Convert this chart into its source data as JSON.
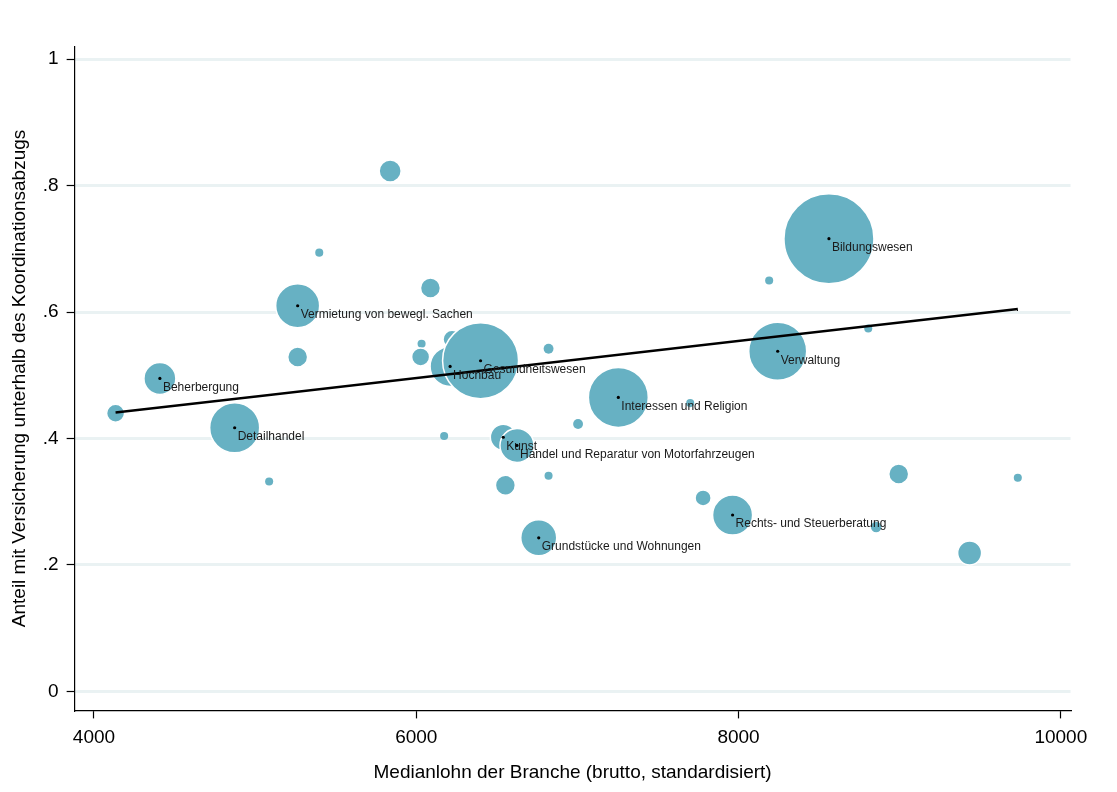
{
  "chart_data": {
    "type": "bubble",
    "xlabel": "Medianlohn der Branche (brutto, standardisiert)",
    "ylabel": "Anteil mit Versicherung unterhalb des Koordinationsabzugs",
    "xlim": [
      3880,
      10060
    ],
    "xticks": [
      4000,
      6000,
      8000,
      10000
    ],
    "ylim": [
      -0.03,
      1.02
    ],
    "yticks": [
      {
        "value": 0,
        "label": "0"
      },
      {
        "value": 0.2,
        "label": ".2"
      },
      {
        "value": 0.4,
        "label": ".4"
      },
      {
        "value": 0.6,
        "label": ".6"
      },
      {
        "value": 0.8,
        "label": ".8"
      },
      {
        "value": 1,
        "label": "1"
      }
    ],
    "grid": "y",
    "legend": false,
    "series": [
      {
        "color": "#67b1c3",
        "x": [
          4134,
          4409,
          4873,
          5087,
          5264,
          5264,
          5398,
          5838,
          6033,
          6027,
          6088,
          6173,
          6210,
          6222,
          6399,
          6540,
          6625,
          6553,
          6821,
          6821,
          6760,
          7004,
          7254,
          7700,
          7780,
          7963,
          8190,
          8243,
          8561,
          8805,
          8854,
          8994,
          9434,
          9733
        ],
        "values": [
          0.44,
          0.495,
          0.417,
          0.332,
          0.61,
          0.529,
          0.694,
          0.823,
          0.55,
          0.529,
          0.638,
          0.404,
          0.514,
          0.557,
          0.523,
          0.402,
          0.389,
          0.326,
          0.542,
          0.341,
          0.243,
          0.423,
          0.465,
          0.456,
          0.306,
          0.279,
          0.65,
          0.538,
          0.716,
          0.574,
          0.26,
          0.344,
          0.219,
          0.338
        ],
        "sizes": [
          0.04,
          0.126,
          0.309,
          0.008,
          0.239,
          0.049,
          0.008,
          0.06,
          0.008,
          0.04,
          0.049,
          0.008,
          0.198,
          0.04,
          0.713,
          0.083,
          0.143,
          0.049,
          0.012,
          0.008,
          0.16,
          0.012,
          0.444,
          0.008,
          0.032,
          0.198,
          0.008,
          0.415,
          1,
          0.008,
          0.018,
          0.049,
          0.071,
          0.008
        ]
      },
      {
        "type": "line",
        "color": "#000000",
        "x": [
          4134,
          9733
        ],
        "values": [
          0.441,
          0.605
        ]
      }
    ],
    "annotations": [
      {
        "text": "Beherbergung",
        "x": 4409,
        "y": 0.495
      },
      {
        "text": "Detailhandel",
        "x": 4873,
        "y": 0.417
      },
      {
        "text": "Vermietung von bewegl. Sachen",
        "x": 5264,
        "y": 0.61
      },
      {
        "text": "Hochbau",
        "x": 6210,
        "y": 0.514
      },
      {
        "text": "Gesundheitswesen",
        "x": 6399,
        "y": 0.523
      },
      {
        "text": "Kunst",
        "x": 6540,
        "y": 0.402
      },
      {
        "text": "Handel und Reparatur von Motorfahrzeugen",
        "x": 6625,
        "y": 0.389
      },
      {
        "text": "Grundstücke und Wohnungen",
        "x": 6760,
        "y": 0.243
      },
      {
        "text": "Interessen und Religion",
        "x": 7254,
        "y": 0.465
      },
      {
        "text": "Rechts- und Steuerberatung",
        "x": 7963,
        "y": 0.279
      },
      {
        "text": "Verwaltung",
        "x": 8243,
        "y": 0.538
      },
      {
        "text": "Bildungswesen",
        "x": 8561,
        "y": 0.716
      }
    ]
  }
}
